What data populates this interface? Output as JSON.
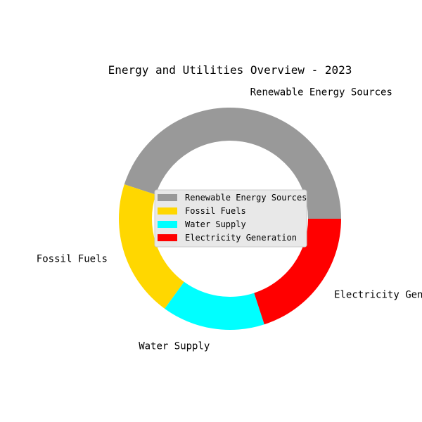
{
  "chart_data": {
    "type": "pie",
    "style": "donut",
    "title": "Energy and Utilities Overview - 2023",
    "categories": [
      "Renewable Energy Sources",
      "Fossil Fuels",
      "Water Supply",
      "Electricity Generation"
    ],
    "values": [
      45,
      20,
      15,
      20
    ],
    "colors": [
      "#999999",
      "#ffd700",
      "#00ffff",
      "#ff0000"
    ],
    "start_angle_deg": 0,
    "direction": "counterclockwise",
    "legend": {
      "placement": "center",
      "background": "#e8e8e8"
    }
  }
}
